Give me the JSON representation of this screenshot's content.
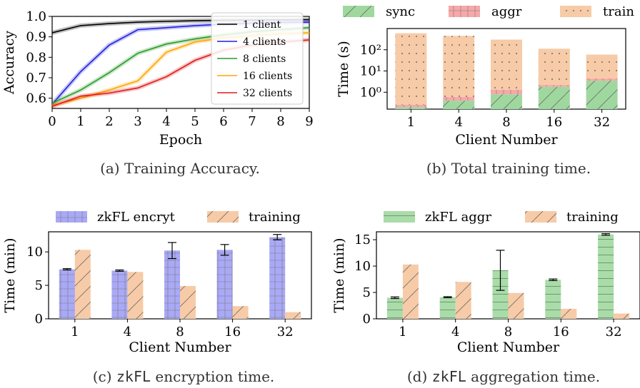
{
  "chart_data": [
    {
      "id": "a",
      "type": "line",
      "caption": "(a) Training Accuracy.",
      "xlabel": "Epoch",
      "ylabel": "Accuracy",
      "xlim": [
        0,
        9
      ],
      "ylim": [
        0.55,
        1.0
      ],
      "xticks": [
        "0",
        "1",
        "2",
        "3",
        "4",
        "5",
        "6",
        "7",
        "8",
        "9"
      ],
      "yticks": [
        "0.6",
        "0.7",
        "0.8",
        "0.9",
        "1.0"
      ],
      "legend_position": "top-right",
      "x": [
        0,
        1,
        2,
        3,
        4,
        5,
        6,
        7,
        8,
        9
      ],
      "series": [
        {
          "name": "1 client",
          "color": "#000000",
          "values": [
            0.92,
            0.955,
            0.965,
            0.972,
            0.976,
            0.979,
            0.981,
            0.982,
            0.983,
            0.984
          ]
        },
        {
          "name": "4 clients",
          "color": "#1f1fe0",
          "values": [
            0.57,
            0.73,
            0.86,
            0.935,
            0.945,
            0.955,
            0.962,
            0.967,
            0.97,
            0.972
          ]
        },
        {
          "name": "8 clients",
          "color": "#2a9a2a",
          "values": [
            0.575,
            0.64,
            0.725,
            0.82,
            0.865,
            0.89,
            0.91,
            0.925,
            0.935,
            0.945
          ]
        },
        {
          "name": "16 clients",
          "color": "#ffa500",
          "values": [
            0.565,
            0.6,
            0.64,
            0.685,
            0.825,
            0.875,
            0.895,
            0.905,
            0.915,
            0.92
          ]
        },
        {
          "name": "32 clients",
          "color": "#e01818",
          "values": [
            0.56,
            0.61,
            0.625,
            0.65,
            0.705,
            0.785,
            0.835,
            0.86,
            0.875,
            0.885
          ]
        }
      ]
    },
    {
      "id": "b",
      "type": "bar",
      "stacked": true,
      "log_scale": true,
      "caption": "(b) Total training time.",
      "xlabel": "Client Number",
      "ylabel": "Time (s)",
      "categories": [
        "1",
        "4",
        "8",
        "16",
        "32"
      ],
      "yticks": [
        "10⁰",
        "10¹",
        "10²"
      ],
      "legend_position": "top",
      "series": [
        {
          "name": "sync",
          "color": "#9fd89f",
          "hatch": "diag",
          "values": [
            0.2,
            0.4,
            0.8,
            1.8,
            3.5
          ]
        },
        {
          "name": "aggr",
          "color": "#f7a8a8",
          "hatch": "grid",
          "values": [
            0.06,
            0.2,
            0.5,
            0.4,
            0.8
          ]
        },
        {
          "name": "train",
          "color": "#f7cba7",
          "hatch": "dots",
          "values": [
            600,
            450,
            300,
            110,
            55
          ]
        }
      ]
    },
    {
      "id": "c",
      "type": "bar",
      "caption_prefix": "(c) ",
      "caption_mono": "zkFL",
      "caption_suffix": " encryption time.",
      "xlabel": "Client Number",
      "ylabel": "Time (min)",
      "categories": [
        "1",
        "4",
        "8",
        "16",
        "32"
      ],
      "ylim": [
        0,
        13
      ],
      "yticks": [
        "0",
        "5",
        "10"
      ],
      "legend_position": "top",
      "series": [
        {
          "name": "zkFL encryt",
          "color": "#a9a9f7",
          "hatch": "grid",
          "values": [
            7.4,
            7.2,
            10.2,
            10.3,
            12.2
          ],
          "errors": [
            0.1,
            0.1,
            1.2,
            0.8,
            0.4
          ]
        },
        {
          "name": "training",
          "color": "#f7cba7",
          "hatch": "diag",
          "values": [
            10.3,
            7.0,
            4.9,
            1.9,
            1.0
          ]
        }
      ]
    },
    {
      "id": "d",
      "type": "bar",
      "caption_prefix": "(d) ",
      "caption_mono": "zkFL",
      "caption_suffix": " aggregation time.",
      "xlabel": "Client Number",
      "ylabel": "Time (min)",
      "categories": [
        "1",
        "4",
        "8",
        "16",
        "32"
      ],
      "ylim": [
        0,
        16.5
      ],
      "yticks": [
        "0",
        "5",
        "10",
        "15"
      ],
      "legend_position": "top",
      "series": [
        {
          "name": "zkFL aggr",
          "color": "#a9dca9",
          "hatch": "hline",
          "values": [
            4.0,
            4.1,
            9.2,
            7.4,
            16.0
          ],
          "errors": [
            0.15,
            0.1,
            3.8,
            0.15,
            0.15
          ]
        },
        {
          "name": "training",
          "color": "#f7cba7",
          "hatch": "diag",
          "values": [
            10.3,
            7.0,
            4.9,
            1.9,
            1.0
          ]
        }
      ]
    }
  ]
}
